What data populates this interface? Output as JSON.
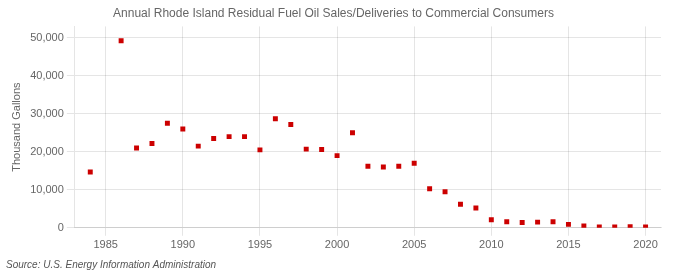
{
  "chart_data": {
    "type": "scatter",
    "title": "Annual Rhode Island Residual Fuel Oil Sales/Deliveries to Commercial Consumers",
    "ylabel": "Thousand Gallons",
    "annotation": "Source: U.S. Energy Information Administration",
    "x": [
      1984,
      1986,
      1987,
      1988,
      1989,
      1990,
      1991,
      1992,
      1993,
      1994,
      1995,
      1996,
      1997,
      1998,
      1999,
      2000,
      2001,
      2002,
      2003,
      2004,
      2005,
      2006,
      2007,
      2008,
      2009,
      2010,
      2011,
      2012,
      2013,
      2014,
      2015,
      2016,
      2017,
      2018,
      2019,
      2020
    ],
    "values": [
      14700,
      49200,
      21000,
      22200,
      27500,
      26000,
      21500,
      23500,
      24000,
      24000,
      20500,
      28700,
      27200,
      20700,
      20600,
      19000,
      25000,
      16200,
      16000,
      16200,
      17000,
      10300,
      9500,
      6200,
      5200,
      2100,
      1600,
      1400,
      1500,
      1600,
      900,
      500,
      200,
      200,
      300,
      200
    ],
    "color": "#cc0000",
    "marker": "square",
    "xlim": [
      1983,
      2021
    ],
    "ylim": [
      0,
      53000
    ],
    "xticks": [
      1985,
      1990,
      1995,
      2000,
      2005,
      2010,
      2015,
      2020
    ],
    "yticks": [
      0,
      {
        "value": 10000,
        "label": "10,000"
      },
      {
        "value": 20000,
        "label": "20,000"
      },
      {
        "value": 30000,
        "label": "30,000"
      },
      {
        "value": 40000,
        "label": "40,000"
      },
      {
        "value": 50000,
        "label": "50,000"
      }
    ],
    "grid": true
  }
}
